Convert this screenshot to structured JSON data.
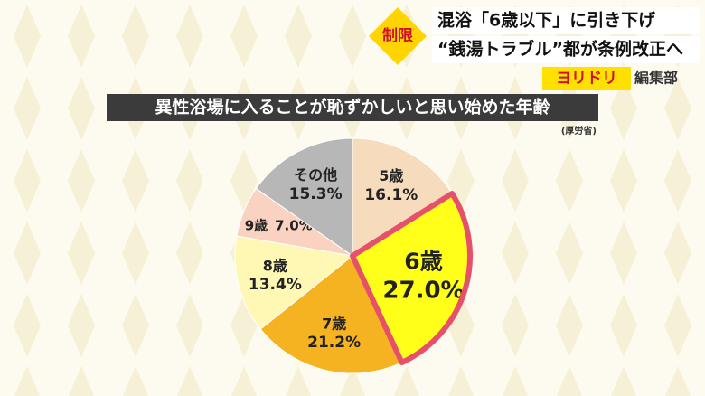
{
  "header": {
    "tag": "制限",
    "headline_1": "混浴「6歳以下」に引き下げ",
    "headline_2": "“銭湯トラブル”都が条例改正へ",
    "brand": "ヨリドリ",
    "brand_sub": "編集部"
  },
  "chart_data": {
    "type": "pie",
    "title": "異性浴場に入ることが恥ずかしいと思い始めた年齢",
    "source": "(厚労省)",
    "categories": [
      "5歳",
      "6歳",
      "7歳",
      "8歳",
      "9歳",
      "その他"
    ],
    "values": [
      16.1,
      27.0,
      21.2,
      13.4,
      7.0,
      15.3
    ],
    "value_labels": [
      "16.1%",
      "27.0%",
      "21.2%",
      "13.4%",
      "7.0%",
      "15.3%"
    ],
    "colors": [
      "#f6dcbc",
      "#ffff1a",
      "#f5b322",
      "#fff7b4",
      "#f9d2c2",
      "#b7b7b7"
    ],
    "outlines": [
      null,
      "#e6506b",
      null,
      null,
      null,
      null
    ]
  }
}
